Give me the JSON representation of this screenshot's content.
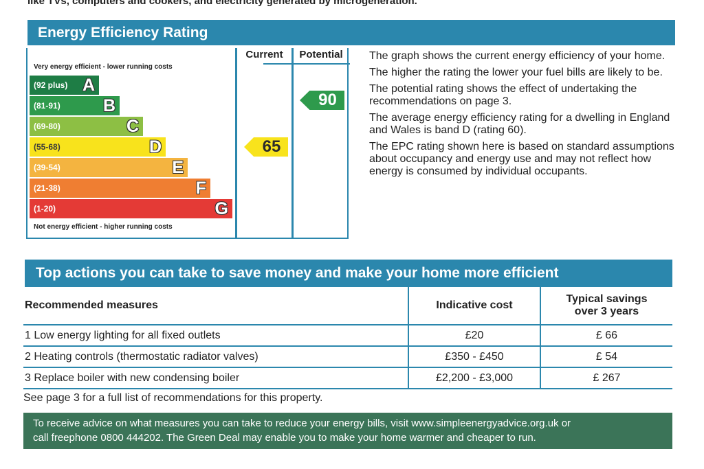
{
  "cut_line": "like TVs, computers and cookers, and electricity generated by microgeneration.",
  "energy_rating": {
    "title": "Energy Efficiency Rating",
    "col_current": "Current",
    "col_potential": "Potential",
    "top_note": "Very energy efficient - lower running costs",
    "bottom_note": "Not energy efficient - higher running costs",
    "bands": [
      {
        "range": "(92 plus)",
        "letter": "A",
        "color": "#1e7d45"
      },
      {
        "range": "(81-91)",
        "letter": "B",
        "color": "#2e9a4c"
      },
      {
        "range": "(69-80)",
        "letter": "C",
        "color": "#8dbf44"
      },
      {
        "range": "(55-68)",
        "letter": "D",
        "color": "#f8e31c"
      },
      {
        "range": "(39-54)",
        "letter": "E",
        "color": "#f4b440"
      },
      {
        "range": "(21-38)",
        "letter": "F",
        "color": "#ef7e32"
      },
      {
        "range": "(1-20)",
        "letter": "G",
        "color": "#e43a36"
      }
    ],
    "current": {
      "value": "65",
      "band": "D",
      "color": "#f8e31c"
    },
    "potential": {
      "value": "90",
      "band": "B",
      "color": "#2e9a4c"
    },
    "explanation": [
      "The graph shows the current energy efficiency of your home.",
      "The higher the rating the lower your fuel bills are likely to be.",
      "The potential rating shows the effect of undertaking the recommendations on page 3.",
      "The average energy efficiency rating for a dwelling in England and Wales is band D (rating 60).",
      "The EPC rating shown here is based on standard assumptions about occupancy and energy use and may not reflect how energy is consumed by individual occupants."
    ]
  },
  "actions": {
    "title": "Top actions you can take to save money and make your home more efficient",
    "headers": {
      "measure": "Recommended measures",
      "cost": "Indicative cost",
      "savings_line1": "Typical savings",
      "savings_line2": "over 3 years"
    },
    "rows": [
      {
        "measure": "1  Low energy lighting for all fixed outlets",
        "cost": "£20",
        "savings": "£ 66"
      },
      {
        "measure": "2  Heating controls (thermostatic radiator valves)",
        "cost": "£350 - £450",
        "savings": "£ 54"
      },
      {
        "measure": "3  Replace boiler with new condensing boiler",
        "cost": "£2,200 - £3,000",
        "savings": "£ 267"
      }
    ],
    "see_page": "See page 3 for a full list of recommendations for this property.",
    "advice_line1": "To receive advice on what measures you can take to reduce your energy bills, visit www.simpleenergyadvice.org.uk or",
    "advice_line2": "call freephone 0800 444202. The Green Deal may enable you to make your home warmer and cheaper to run."
  }
}
